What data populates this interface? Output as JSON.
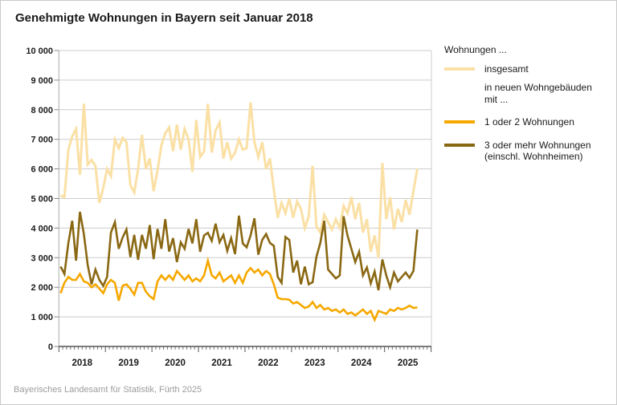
{
  "page": {
    "footer": "Bayerisches Landesamt für Statistik, Fürth 2025"
  },
  "legend": {
    "header": "Wohnungen ...",
    "items": [
      {
        "label": "insgesamt",
        "color": "#fae0a5"
      },
      {
        "label_line1": "in neuen Wohngebäuden",
        "label_line2": "mit ..."
      },
      {
        "label": "1 oder 2 Wohnungen",
        "color": "#f6a800"
      },
      {
        "label_line1": "3 oder mehr Wohnungen",
        "label_line2": "(einschl. Wohnheimen)",
        "color": "#8a6813"
      }
    ]
  },
  "chart_data": {
    "type": "line",
    "title": "Genehmigte Wohnungen in Bayern seit Januar 2018",
    "x_start": "2018-01",
    "x_end": "2025-09",
    "months_per_year": 12,
    "x_tick_labels": [
      "2018",
      "2019",
      "2020",
      "2021",
      "2022",
      "2023",
      "2024",
      "2025"
    ],
    "y_tick_labels": [
      "0",
      "1 000",
      "2 000",
      "3 000",
      "4 000",
      "5 000",
      "6 000",
      "7 000",
      "8 000",
      "9 000",
      "10 000"
    ],
    "ylim": [
      0,
      10000
    ],
    "grid": "horizontal",
    "legend_position": "right",
    "series": [
      {
        "name": "insgesamt",
        "color": "#fae0a5",
        "width": 3,
        "values": [
          5100,
          5050,
          6650,
          7100,
          7350,
          5800,
          8200,
          6150,
          6300,
          6100,
          4850,
          5350,
          6000,
          5750,
          7000,
          6700,
          7050,
          6900,
          5450,
          5200,
          6000,
          7150,
          6000,
          6350,
          5250,
          5950,
          6800,
          7200,
          7400,
          6600,
          7500,
          6650,
          7350,
          7000,
          5900,
          7650,
          6400,
          6600,
          8200,
          6550,
          7300,
          7570,
          6350,
          6900,
          6350,
          6550,
          7000,
          6650,
          6700,
          8250,
          6900,
          6400,
          6900,
          6000,
          6350,
          5300,
          4350,
          4850,
          4500,
          5000,
          4350,
          4900,
          4650,
          4000,
          4400,
          6100,
          4050,
          3850,
          4450,
          4200,
          3950,
          4300,
          4000,
          4750,
          4500,
          5050,
          4300,
          4850,
          3850,
          4300,
          3200,
          3750,
          3000,
          6200,
          4300,
          5050,
          3950,
          4650,
          4200,
          4950,
          4450,
          5250,
          6000
        ]
      },
      {
        "name": "3 oder mehr Wohnungen (einschl. Wohnheimen)",
        "color": "#8a6813",
        "width": 2.6,
        "values": [
          2700,
          2450,
          3500,
          4250,
          2900,
          4550,
          3800,
          2750,
          2100,
          2600,
          2250,
          2050,
          2350,
          3850,
          4200,
          3300,
          3680,
          3950,
          3020,
          3770,
          2930,
          3770,
          3300,
          4100,
          2950,
          3970,
          3300,
          4300,
          3210,
          3660,
          2850,
          3520,
          3300,
          3970,
          3480,
          4300,
          3200,
          3750,
          3840,
          3570,
          4150,
          3520,
          3770,
          3230,
          3660,
          3120,
          4420,
          3480,
          3350,
          3750,
          4330,
          3100,
          3600,
          3800,
          3500,
          3400,
          2350,
          2150,
          3700,
          3600,
          2500,
          2900,
          2100,
          2700,
          2100,
          2170,
          3030,
          3500,
          4250,
          2600,
          2450,
          2300,
          2400,
          4400,
          3750,
          3300,
          2850,
          3200,
          2400,
          2670,
          2130,
          2530,
          1900,
          2940,
          2400,
          2000,
          2500,
          2200,
          2350,
          2500,
          2320,
          2550,
          3950
        ]
      },
      {
        "name": "1 oder 2 Wohnungen",
        "color": "#f6a800",
        "width": 2.6,
        "values": [
          1800,
          2150,
          2350,
          2250,
          2250,
          2450,
          2200,
          2150,
          2000,
          2100,
          1950,
          1800,
          2100,
          2250,
          2150,
          1550,
          2050,
          2100,
          1950,
          1750,
          2150,
          2150,
          1850,
          1700,
          1600,
          2200,
          2400,
          2250,
          2400,
          2250,
          2550,
          2400,
          2250,
          2400,
          2200,
          2300,
          2200,
          2400,
          2900,
          2400,
          2300,
          2500,
          2200,
          2300,
          2400,
          2150,
          2400,
          2150,
          2500,
          2650,
          2500,
          2600,
          2400,
          2550,
          2450,
          2100,
          1650,
          1600,
          1600,
          1580,
          1450,
          1500,
          1400,
          1300,
          1350,
          1500,
          1300,
          1400,
          1250,
          1300,
          1200,
          1250,
          1150,
          1250,
          1100,
          1150,
          1050,
          1150,
          1250,
          1100,
          1200,
          900,
          1200,
          1150,
          1100,
          1250,
          1200,
          1300,
          1250,
          1300,
          1380,
          1300,
          1320
        ]
      }
    ]
  }
}
